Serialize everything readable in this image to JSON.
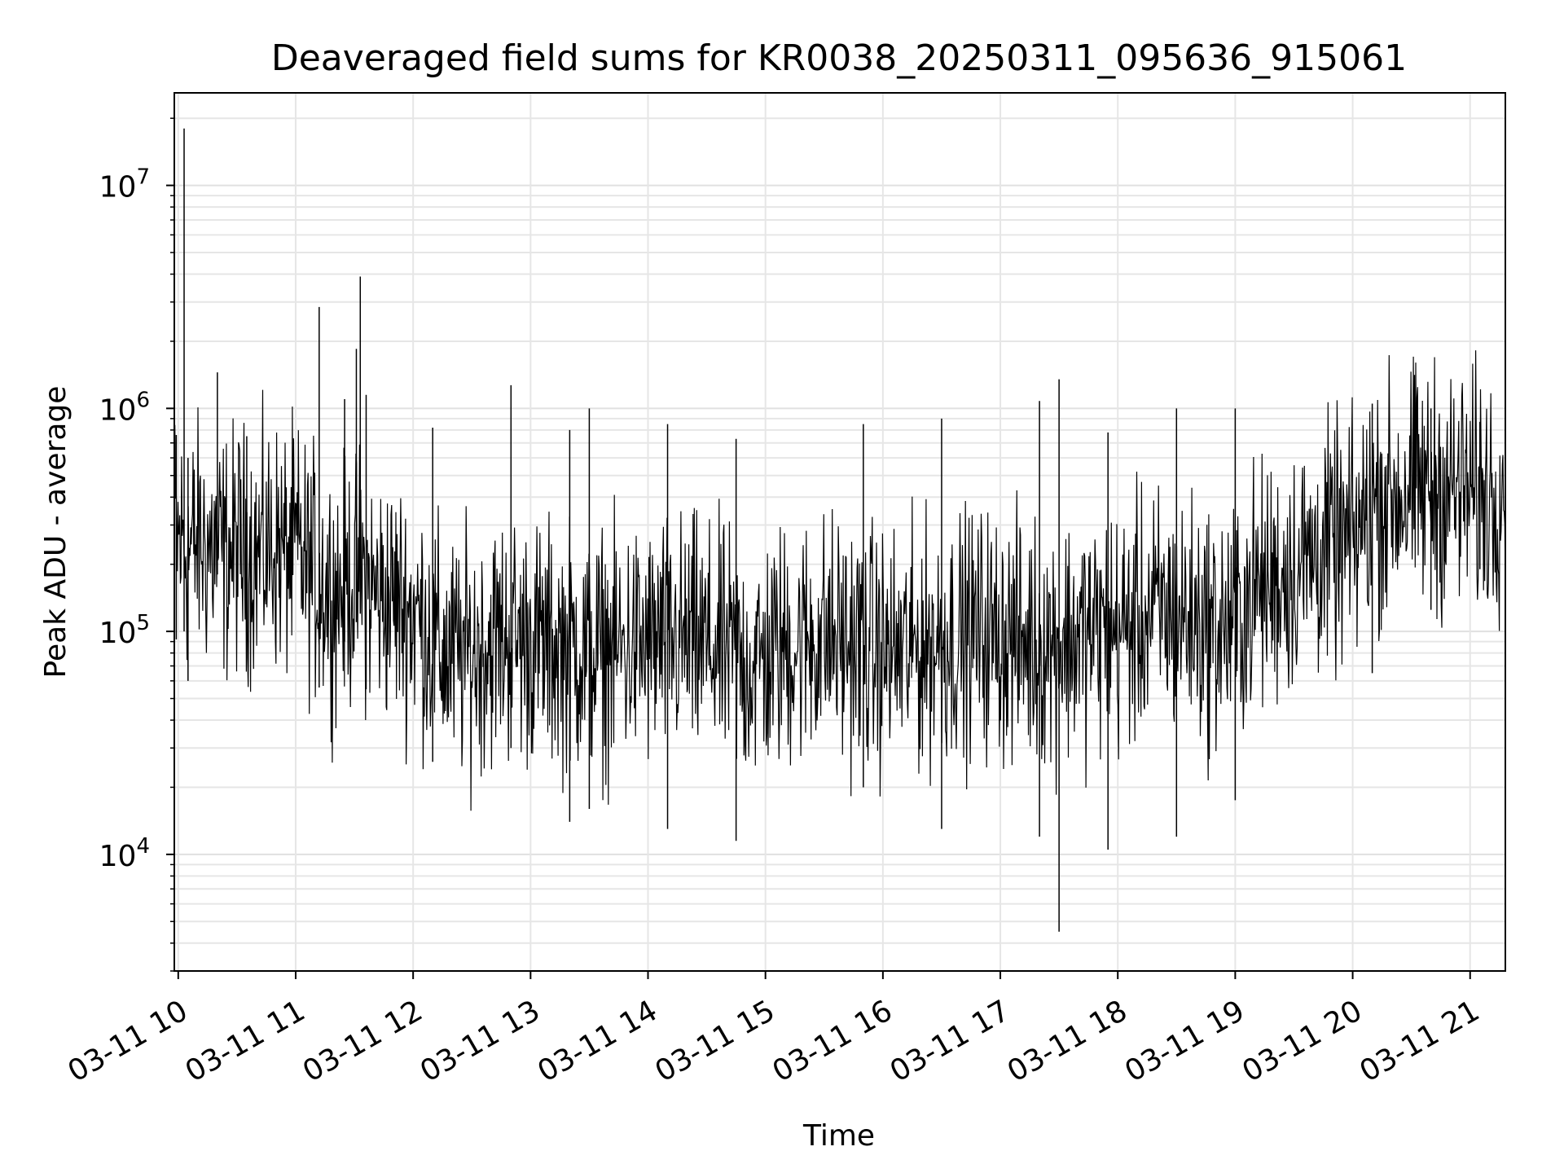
{
  "chart_data": {
    "type": "line",
    "title": "Deaveraged field sums for KR0038_20250311_095636_915061",
    "xlabel": "Time",
    "ylabel": "Peak ADU - average",
    "y_scale": "log",
    "ylim": [
      3000,
      26000000
    ],
    "xlim": [
      "2025-03-11 09:58",
      "2025-03-11 21:18"
    ],
    "grid": true,
    "line_color": "#000000",
    "x_ticks": [
      {
        "t": "2025-03-11 10:00",
        "label": "03-11 10"
      },
      {
        "t": "2025-03-11 11:00",
        "label": "03-11 11"
      },
      {
        "t": "2025-03-11 12:00",
        "label": "03-11 12"
      },
      {
        "t": "2025-03-11 13:00",
        "label": "03-11 13"
      },
      {
        "t": "2025-03-11 14:00",
        "label": "03-11 14"
      },
      {
        "t": "2025-03-11 15:00",
        "label": "03-11 15"
      },
      {
        "t": "2025-03-11 16:00",
        "label": "03-11 16"
      },
      {
        "t": "2025-03-11 17:00",
        "label": "03-11 17"
      },
      {
        "t": "2025-03-11 18:00",
        "label": "03-11 18"
      },
      {
        "t": "2025-03-11 19:00",
        "label": "03-11 19"
      },
      {
        "t": "2025-03-11 20:00",
        "label": "03-11 20"
      },
      {
        "t": "2025-03-11 21:00",
        "label": "03-11 21"
      }
    ],
    "y_ticks": [
      {
        "value": 10000,
        "base": "10",
        "exp": "4"
      },
      {
        "value": 100000,
        "base": "10",
        "exp": "5"
      },
      {
        "value": 1000000,
        "base": "10",
        "exp": "6"
      },
      {
        "value": 10000000,
        "base": "10",
        "exp": "7"
      }
    ],
    "series": [
      {
        "x": [
          "2025-03-11 09:58",
          "2025-03-11 10:00",
          "2025-03-11 10:03",
          "2025-03-11 10:05",
          "2025-03-11 10:10",
          "2025-03-11 10:15",
          "2025-03-11 10:20",
          "2025-03-11 10:25",
          "2025-03-11 10:30",
          "2025-03-11 10:35",
          "2025-03-11 10:40",
          "2025-03-11 10:45",
          "2025-03-11 10:50",
          "2025-03-11 10:55",
          "2025-03-11 11:00",
          "2025-03-11 11:05",
          "2025-03-11 11:10",
          "2025-03-11 11:12",
          "2025-03-11 11:15",
          "2025-03-11 11:20",
          "2025-03-11 11:25",
          "2025-03-11 11:30",
          "2025-03-11 11:33",
          "2025-03-11 11:35",
          "2025-03-11 11:40",
          "2025-03-11 11:45",
          "2025-03-11 11:50",
          "2025-03-11 11:55",
          "2025-03-11 12:00",
          "2025-03-11 12:05",
          "2025-03-11 12:10",
          "2025-03-11 12:15",
          "2025-03-11 12:20",
          "2025-03-11 12:30",
          "2025-03-11 12:40",
          "2025-03-11 12:50",
          "2025-03-11 13:00",
          "2025-03-11 13:10",
          "2025-03-11 13:20",
          "2025-03-11 13:30",
          "2025-03-11 13:40",
          "2025-03-11 13:50",
          "2025-03-11 14:00",
          "2025-03-11 14:10",
          "2025-03-11 14:20",
          "2025-03-11 14:30",
          "2025-03-11 14:40",
          "2025-03-11 14:50",
          "2025-03-11 15:00",
          "2025-03-11 15:10",
          "2025-03-11 15:20",
          "2025-03-11 15:30",
          "2025-03-11 15:40",
          "2025-03-11 15:50",
          "2025-03-11 16:00",
          "2025-03-11 16:10",
          "2025-03-11 16:20",
          "2025-03-11 16:30",
          "2025-03-11 16:40",
          "2025-03-11 16:50",
          "2025-03-11 17:00",
          "2025-03-11 17:10",
          "2025-03-11 17:20",
          "2025-03-11 17:30",
          "2025-03-11 17:40",
          "2025-03-11 17:50",
          "2025-03-11 18:00",
          "2025-03-11 18:10",
          "2025-03-11 18:20",
          "2025-03-11 18:30",
          "2025-03-11 18:40",
          "2025-03-11 18:50",
          "2025-03-11 19:00",
          "2025-03-11 19:10",
          "2025-03-11 19:20",
          "2025-03-11 19:30",
          "2025-03-11 19:40",
          "2025-03-11 19:50",
          "2025-03-11 20:00",
          "2025-03-11 20:05",
          "2025-03-11 20:10",
          "2025-03-11 20:20",
          "2025-03-11 20:30",
          "2025-03-11 20:40",
          "2025-03-11 20:50",
          "2025-03-11 21:00",
          "2025-03-11 21:10",
          "2025-03-11 21:18"
        ],
        "values": [
          300000,
          250000,
          260000,
          230000,
          250000,
          240000,
          230000,
          220000,
          240000,
          230000,
          220000,
          230000,
          240000,
          220000,
          230000,
          200000,
          180000,
          170000,
          160000,
          150000,
          160000,
          170000,
          190000,
          170000,
          150000,
          140000,
          140000,
          130000,
          120000,
          110000,
          90000,
          80000,
          75000,
          80000,
          90000,
          95000,
          90000,
          85000,
          85000,
          80000,
          80000,
          85000,
          85000,
          90000,
          90000,
          85000,
          80000,
          70000,
          75000,
          85000,
          90000,
          95000,
          90000,
          85000,
          80000,
          80000,
          85000,
          90000,
          95000,
          100000,
          95000,
          90000,
          90000,
          90000,
          95000,
          100000,
          100000,
          110000,
          120000,
          120000,
          110000,
          100000,
          110000,
          150000,
          170000,
          190000,
          220000,
          240000,
          250000,
          300000,
          380000,
          400000,
          420000,
          440000,
          430000,
          420000,
          410000,
          480000
        ]
      }
    ],
    "spikes": [
      {
        "x": "2025-03-11 09:59",
        "y_max": 760000,
        "y_min": 92000
      },
      {
        "x": "2025-03-11 10:03",
        "y_max": 18000000,
        "y_min": 100000
      },
      {
        "x": "2025-03-11 10:05",
        "y_max": 600000,
        "y_min": 60000
      },
      {
        "x": "2025-03-11 10:20",
        "y_max": 1450000,
        "y_min": 180000
      },
      {
        "x": "2025-03-11 10:35",
        "y_max": 750000,
        "y_min": 90000
      },
      {
        "x": "2025-03-11 11:12",
        "y_max": 2850000,
        "y_min": 56000
      },
      {
        "x": "2025-03-11 11:25",
        "y_max": 1100000,
        "y_min": 90000
      },
      {
        "x": "2025-03-11 11:31",
        "y_max": 1850000,
        "y_min": 110000
      },
      {
        "x": "2025-03-11 11:33",
        "y_max": 3900000,
        "y_min": 120000
      },
      {
        "x": "2025-03-11 11:36",
        "y_max": 1150000,
        "y_min": 55000
      },
      {
        "x": "2025-03-11 12:10",
        "y_max": 820000,
        "y_min": 26000
      },
      {
        "x": "2025-03-11 12:50",
        "y_max": 1270000,
        "y_min": 30000
      },
      {
        "x": "2025-03-11 13:20",
        "y_max": 800000,
        "y_min": 14000
      },
      {
        "x": "2025-03-11 13:30",
        "y_max": 1000000,
        "y_min": 16000
      },
      {
        "x": "2025-03-11 14:10",
        "y_max": 850000,
        "y_min": 13000
      },
      {
        "x": "2025-03-11 14:45",
        "y_max": 730000,
        "y_min": 11500
      },
      {
        "x": "2025-03-11 15:50",
        "y_max": 850000,
        "y_min": 20000
      },
      {
        "x": "2025-03-11 16:30",
        "y_max": 900000,
        "y_min": 13000
      },
      {
        "x": "2025-03-11 17:20",
        "y_max": 1080000,
        "y_min": 12000
      },
      {
        "x": "2025-03-11 17:30",
        "y_max": 1350000,
        "y_min": 4500
      },
      {
        "x": "2025-03-11 17:55",
        "y_max": 780000,
        "y_min": 10500
      },
      {
        "x": "2025-03-11 18:30",
        "y_max": 1000000,
        "y_min": 12000
      },
      {
        "x": "2025-03-11 19:00",
        "y_max": 1000000,
        "y_min": 17500
      },
      {
        "x": "2025-03-11 20:10",
        "y_max": 1050000,
        "y_min": 65000
      },
      {
        "x": "2025-03-11 20:40",
        "y_max": 1000000,
        "y_min": 125000
      },
      {
        "x": "2025-03-11 21:05",
        "y_max": 870000,
        "y_min": 190000
      }
    ]
  }
}
